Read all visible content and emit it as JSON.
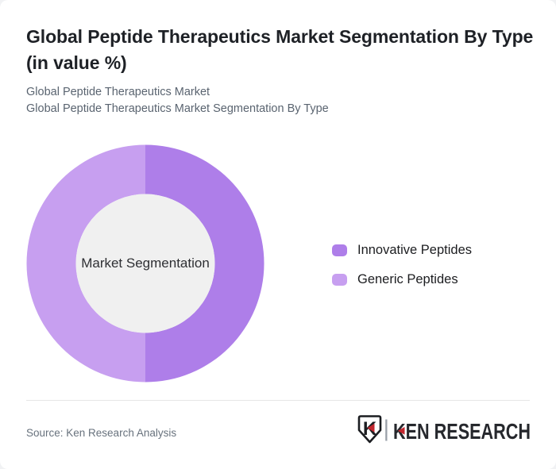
{
  "card": {
    "background": "#ffffff"
  },
  "header": {
    "title": "Global Peptide Therapeutics Market Segmentation By Type (in value %)",
    "subtitles": [
      "Global Peptide Therapeutics Market",
      "Global Peptide Therapeutics Market Segmentation By Type"
    ]
  },
  "chart_data": {
    "type": "pie",
    "variant": "donut",
    "title": "Global Peptide Therapeutics Market Segmentation By Type (in value %)",
    "units": "value %",
    "center_label": "Market Segmentation",
    "center_fill": "#f0f0f0",
    "donut_hole_ratio": 0.585,
    "rotation_deg": 0,
    "legend_position": "right",
    "slices": [
      {
        "label": "Innovative Peptides",
        "value": 50,
        "color": "#ae7ee9"
      },
      {
        "label": "Generic Peptides",
        "value": 50,
        "color": "#c79ff0"
      }
    ]
  },
  "footer": {
    "source": "Source: Ken Research Analysis",
    "brand": {
      "monogram": "K",
      "name": "KEN RESEARCH",
      "outline_color": "#1b1d21",
      "text_color": "#26282d",
      "accent_red": "#c2262e",
      "separator_color": "#99a0a8"
    }
  }
}
